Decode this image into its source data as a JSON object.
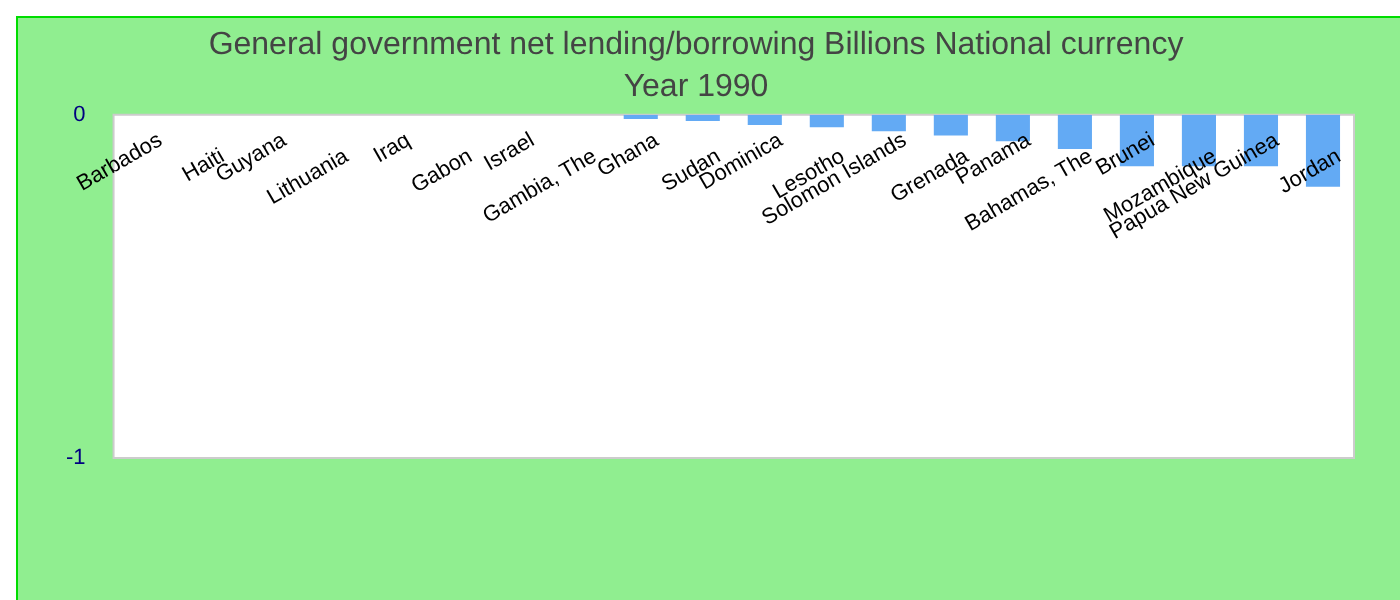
{
  "chart_data": {
    "type": "bar",
    "title": "General government net lending/borrowing Billions National currency",
    "subtitle": "Year 1990",
    "categories": [
      "Barbados",
      "Haiti",
      "Guyana",
      "Lithuania",
      "Iraq",
      "Gabon",
      "Israel",
      "Gambia, The",
      "Ghana",
      "Sudan",
      "Dominica",
      "Lesotho",
      "Solomon Islands",
      "Grenada",
      "Panama",
      "Bahamas, The",
      "Brunei",
      "Mozambique",
      "Papua New Guinea",
      "Jordan"
    ],
    "values": [
      0,
      0,
      0,
      0,
      0,
      0,
      0,
      0,
      -0.012,
      -0.018,
      -0.03,
      -0.036,
      -0.048,
      -0.06,
      -0.077,
      -0.1,
      -0.15,
      -0.15,
      -0.15,
      -0.21
    ],
    "color": "#63aaf4",
    "ylim": [
      -1,
      0
    ],
    "yticks": [
      -1,
      0
    ],
    "grid": false,
    "legend": false
  }
}
